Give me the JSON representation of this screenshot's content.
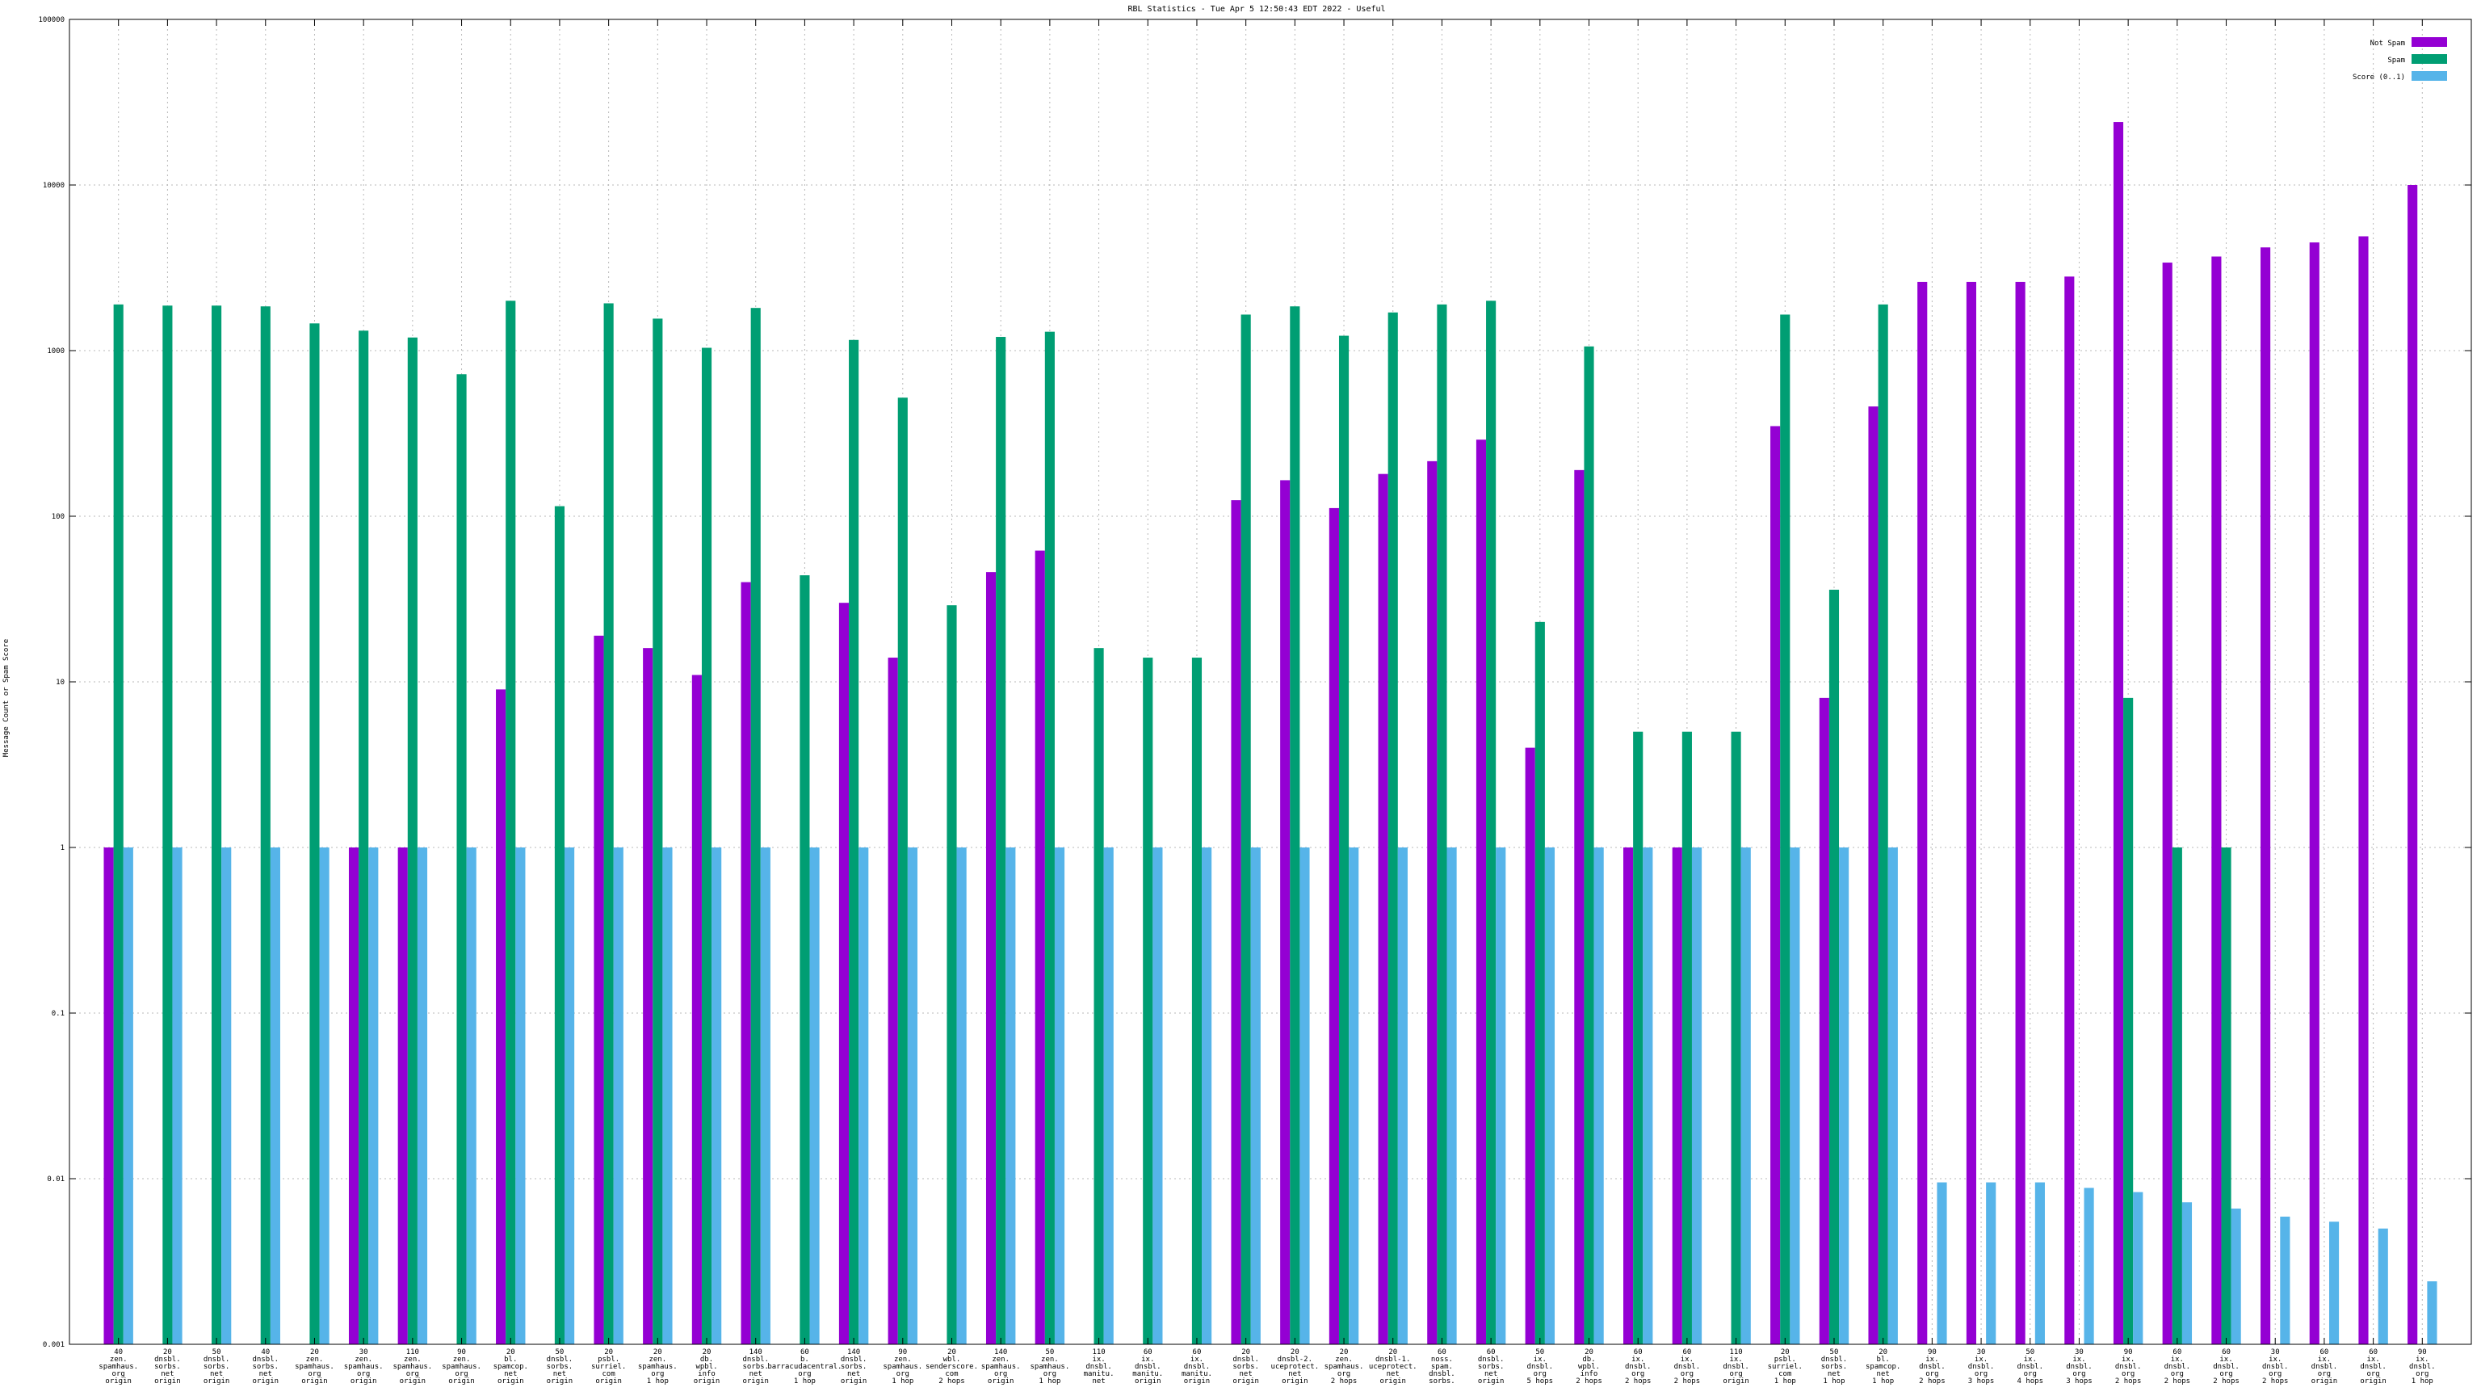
{
  "chart_data": {
    "type": "bar",
    "title": "RBL Statistics - Tue Apr  5 12:50:43 EDT 2022 - Useful",
    "ylabel": "Message Count or Spam Score",
    "xlabel": "",
    "yscale": "log",
    "ylim": [
      0.001,
      100000
    ],
    "yticks": [
      {
        "value": 0.001,
        "label": "0.001"
      },
      {
        "value": 0.01,
        "label": "0.01"
      },
      {
        "value": 0.1,
        "label": "0.1"
      },
      {
        "value": 1,
        "label": "1"
      },
      {
        "value": 10,
        "label": "10"
      },
      {
        "value": 100,
        "label": "100"
      },
      {
        "value": 1000,
        "label": "1000"
      },
      {
        "value": 10000,
        "label": "10000"
      },
      {
        "value": 100000,
        "label": "100000"
      }
    ],
    "grid": true,
    "legend_position": "top-right",
    "categories": [
      [
        "40",
        "zen.",
        "spamhaus.",
        "org",
        "origin"
      ],
      [
        "20",
        "dnsbl.",
        "sorbs.",
        "net",
        "origin"
      ],
      [
        "50",
        "dnsbl.",
        "sorbs.",
        "net",
        "origin"
      ],
      [
        "40",
        "dnsbl.",
        "sorbs.",
        "net",
        "origin"
      ],
      [
        "20",
        "zen.",
        "spamhaus.",
        "org",
        "origin"
      ],
      [
        "30",
        "zen.",
        "spamhaus.",
        "org",
        "origin"
      ],
      [
        "110",
        "zen.",
        "spamhaus.",
        "org",
        "origin"
      ],
      [
        "90",
        "zen.",
        "spamhaus.",
        "org",
        "origin"
      ],
      [
        "20",
        "bl.",
        "spamcop.",
        "net",
        "origin"
      ],
      [
        "50",
        "dnsbl.",
        "sorbs.",
        "net",
        "origin"
      ],
      [
        "20",
        "psbl.",
        "surriel.",
        "com",
        "origin"
      ],
      [
        "20",
        "zen.",
        "spamhaus.",
        "org",
        "1 hop"
      ],
      [
        "20",
        "db.",
        "wpbl.",
        "info",
        "origin"
      ],
      [
        "140",
        "dnsbl.",
        "sorbs.",
        "net",
        "origin"
      ],
      [
        "60",
        "b.",
        "barracudacentral.",
        "org",
        "1 hop"
      ],
      [
        "140",
        "dnsbl.",
        "sorbs.",
        "net",
        "origin"
      ],
      [
        "90",
        "zen.",
        "spamhaus.",
        "org",
        "1 hop"
      ],
      [
        "20",
        "wbl.",
        "senderscore.",
        "com",
        "2 hops"
      ],
      [
        "140",
        "zen.",
        "spamhaus.",
        "org",
        "origin"
      ],
      [
        "50",
        "zen.",
        "spamhaus.",
        "org",
        "1 hop"
      ],
      [
        "110",
        "ix.",
        "dnsbl.",
        "manitu.",
        "net"
      ],
      [
        "60",
        "ix.",
        "dnsbl.",
        "manitu.",
        "origin"
      ],
      [
        "60",
        "ix.",
        "dnsbl.",
        "manitu.",
        "origin"
      ],
      [
        "20",
        "dnsbl.",
        "sorbs.",
        "net",
        "origin"
      ],
      [
        "20",
        "dnsbl-2.",
        "uceprotect.",
        "net",
        "origin"
      ],
      [
        "20",
        "zen.",
        "spamhaus.",
        "org",
        "2 hops"
      ],
      [
        "20",
        "dnsbl-1.",
        "uceprotect.",
        "net",
        "origin"
      ],
      [
        "60",
        "noss.",
        "spam.",
        "dnsbl.",
        "sorbs."
      ],
      [
        "60",
        "dnsbl.",
        "sorbs.",
        "net",
        "origin"
      ],
      [
        "50",
        "ix.",
        "dnsbl.",
        "org",
        "5 hops"
      ],
      [
        "20",
        "db.",
        "wpbl.",
        "info",
        "2 hops"
      ],
      [
        "60",
        "ix.",
        "dnsbl.",
        "org",
        "2 hops"
      ],
      [
        "60",
        "ix.",
        "dnsbl.",
        "org",
        "2 hops"
      ],
      [
        "110",
        "ix.",
        "dnsbl.",
        "org",
        "origin"
      ],
      [
        "20",
        "psbl.",
        "surriel.",
        "com",
        "1 hop"
      ],
      [
        "50",
        "dnsbl.",
        "sorbs.",
        "net",
        "1 hop"
      ],
      [
        "20",
        "bl.",
        "spamcop.",
        "net",
        "1 hop"
      ],
      [
        "90",
        "ix.",
        "dnsbl.",
        "org",
        "2 hops"
      ],
      [
        "30",
        "ix.",
        "dnsbl.",
        "org",
        "3 hops"
      ],
      [
        "50",
        "ix.",
        "dnsbl.",
        "org",
        "4 hops"
      ],
      [
        "30",
        "ix.",
        "dnsbl.",
        "org",
        "3 hops"
      ],
      [
        "90",
        "ix.",
        "dnsbl.",
        "org",
        "2 hops"
      ],
      [
        "60",
        "ix.",
        "dnsbl.",
        "org",
        "2 hops"
      ],
      [
        "60",
        "ix.",
        "dnsbl.",
        "org",
        "2 hops"
      ],
      [
        "30",
        "ix.",
        "dnsbl.",
        "org",
        "2 hops"
      ],
      [
        "60",
        "ix.",
        "dnsbl.",
        "org",
        "origin"
      ],
      [
        "60",
        "ix.",
        "dnsbl.",
        "org",
        "origin"
      ],
      [
        "90",
        "ix.",
        "dnsbl.",
        "org",
        "1 hop"
      ]
    ],
    "series": [
      {
        "name": "Not Spam",
        "color": "#9400d3",
        "values": [
          1,
          null,
          null,
          null,
          null,
          1,
          1,
          null,
          9,
          null,
          19,
          16,
          11,
          40,
          null,
          30,
          14,
          null,
          46,
          62,
          null,
          null,
          null,
          125,
          165,
          112,
          180,
          215,
          290,
          4,
          190,
          1,
          1,
          null,
          350,
          8,
          460,
          2600,
          2600,
          2600,
          2800,
          24000,
          3400,
          3700,
          4200,
          4500,
          4900,
          10000
        ]
      },
      {
        "name": "Spam",
        "color": "#009e73",
        "values": [
          1900,
          1870,
          1870,
          1850,
          1460,
          1320,
          1200,
          720,
          2000,
          115,
          1930,
          1560,
          1040,
          1810,
          44,
          1160,
          520,
          29,
          1210,
          1300,
          16,
          14,
          14,
          1650,
          1850,
          1230,
          1700,
          1900,
          2000,
          23,
          1060,
          5,
          5,
          5,
          1650,
          36,
          1900,
          null,
          null,
          null,
          null,
          8,
          1,
          1,
          null,
          null,
          null,
          null
        ]
      },
      {
        "name": "Score (0..1)",
        "color": "#56b4e9",
        "values": [
          1,
          1,
          1,
          1,
          1,
          1,
          1,
          1,
          1,
          1,
          1,
          1,
          1,
          1,
          1,
          1,
          1,
          1,
          1,
          1,
          1,
          1,
          1,
          1,
          1,
          1,
          1,
          1,
          1,
          1,
          1,
          1,
          1,
          1,
          1,
          1,
          1,
          0.0095,
          0.0095,
          0.0095,
          0.0088,
          0.0083,
          0.0072,
          0.0066,
          0.0059,
          0.0055,
          0.005,
          0.0024
        ]
      }
    ]
  }
}
